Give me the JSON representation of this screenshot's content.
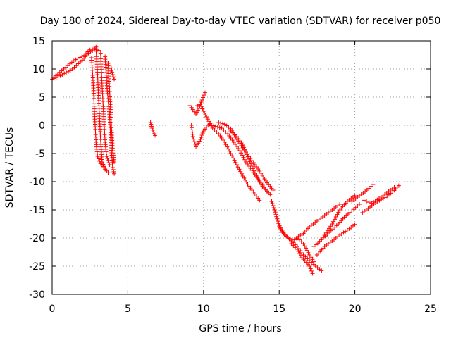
{
  "chart_data": {
    "type": "scatter",
    "title": "Day 180 of 2024, Sidereal Day-to-day VTEC variation (SDTVAR) for receiver p050",
    "xlabel": "GPS time / hours",
    "ylabel": "SDTVAR / TECUs",
    "xlim": [
      0,
      25
    ],
    "ylim": [
      -30,
      15
    ],
    "xticks": [
      0,
      5,
      10,
      15,
      20,
      25
    ],
    "yticks": [
      -30,
      -25,
      -20,
      -15,
      -10,
      -5,
      0,
      5,
      10,
      15
    ],
    "grid": true,
    "marker": "+",
    "series": [
      {
        "name": "SDTVAR",
        "color": "#ff0000",
        "tracks": [
          [
            [
              0.0,
              8.2
            ],
            [
              0.4,
              8.6
            ],
            [
              0.8,
              9.2
            ],
            [
              1.2,
              9.7
            ],
            [
              1.6,
              10.6
            ],
            [
              2.0,
              11.6
            ],
            [
              2.4,
              12.8
            ],
            [
              2.8,
              13.5
            ],
            [
              3.1,
              13.3
            ]
          ],
          [
            [
              0.1,
              8.5
            ],
            [
              0.5,
              9.4
            ],
            [
              0.9,
              10.3
            ],
            [
              1.3,
              11.2
            ],
            [
              1.7,
              11.9
            ],
            [
              2.1,
              12.4
            ],
            [
              2.5,
              13.4
            ],
            [
              2.9,
              13.9
            ]
          ],
          [
            [
              2.6,
              12.0
            ],
            [
              2.7,
              8.0
            ],
            [
              2.8,
              2.0
            ],
            [
              2.9,
              -3.0
            ],
            [
              3.0,
              -5.5
            ],
            [
              3.2,
              -6.8
            ],
            [
              3.5,
              -7.6
            ]
          ],
          [
            [
              2.9,
              13.6
            ],
            [
              3.0,
              9.0
            ],
            [
              3.1,
              3.0
            ],
            [
              3.2,
              -2.5
            ],
            [
              3.3,
              -6.5
            ],
            [
              3.5,
              -7.8
            ],
            [
              3.7,
              -8.4
            ]
          ],
          [
            [
              3.2,
              12.8
            ],
            [
              3.3,
              7.0
            ],
            [
              3.4,
              2.0
            ],
            [
              3.5,
              -3.0
            ],
            [
              3.6,
              -5.5
            ],
            [
              3.8,
              -7.0
            ]
          ],
          [
            [
              3.5,
              12.2
            ],
            [
              3.6,
              7.5
            ],
            [
              3.8,
              1.5
            ],
            [
              3.9,
              -4.0
            ],
            [
              4.0,
              -7.5
            ],
            [
              4.1,
              -8.6
            ]
          ],
          [
            [
              3.7,
              11.0
            ],
            [
              3.8,
              6.0
            ],
            [
              3.9,
              0.5
            ],
            [
              4.0,
              -4.5
            ],
            [
              4.1,
              -6.5
            ]
          ],
          [
            [
              3.9,
              10.2
            ],
            [
              4.0,
              9.0
            ],
            [
              4.1,
              8.2
            ]
          ],
          [
            [
              6.5,
              0.5
            ],
            [
              6.6,
              -0.5
            ],
            [
              6.7,
              -1.2
            ],
            [
              6.8,
              -1.8
            ]
          ],
          [
            [
              9.1,
              3.5
            ],
            [
              9.3,
              2.8
            ],
            [
              9.5,
              2.0
            ],
            [
              9.7,
              3.0
            ],
            [
              9.9,
              4.5
            ],
            [
              10.1,
              5.8
            ]
          ],
          [
            [
              9.2,
              0.0
            ],
            [
              9.3,
              -2.0
            ],
            [
              9.5,
              -3.8
            ],
            [
              9.8,
              -2.5
            ],
            [
              10.0,
              -1.0
            ],
            [
              10.3,
              0.0
            ]
          ],
          [
            [
              9.6,
              3.5
            ],
            [
              9.8,
              3.8
            ],
            [
              10.0,
              2.5
            ],
            [
              10.2,
              1.5
            ]
          ],
          [
            [
              10.2,
              1.5
            ],
            [
              10.6,
              -0.5
            ],
            [
              11.0,
              -1.5
            ],
            [
              11.4,
              -3.0
            ],
            [
              11.8,
              -5.0
            ],
            [
              12.2,
              -7.0
            ],
            [
              12.6,
              -9.0
            ],
            [
              13.0,
              -10.8
            ],
            [
              13.4,
              -12.2
            ],
            [
              13.7,
              -13.3
            ]
          ],
          [
            [
              10.4,
              0.2
            ],
            [
              10.8,
              -0.2
            ],
            [
              11.2,
              -0.5
            ],
            [
              11.6,
              -1.5
            ],
            [
              12.0,
              -3.0
            ],
            [
              12.4,
              -4.5
            ],
            [
              12.8,
              -6.5
            ],
            [
              13.2,
              -8.0
            ],
            [
              13.6,
              -9.5
            ],
            [
              14.0,
              -11.0
            ],
            [
              14.4,
              -12.3
            ]
          ],
          [
            [
              11.0,
              0.5
            ],
            [
              11.4,
              0.2
            ],
            [
              11.8,
              -0.6
            ],
            [
              12.2,
              -2.5
            ],
            [
              12.6,
              -4.0
            ],
            [
              13.0,
              -5.5
            ],
            [
              13.4,
              -7.0
            ],
            [
              13.8,
              -8.5
            ],
            [
              14.2,
              -10.2
            ],
            [
              14.6,
              -11.5
            ]
          ],
          [
            [
              11.8,
              -1.0
            ],
            [
              12.2,
              -2.0
            ],
            [
              12.6,
              -3.5
            ],
            [
              13.0,
              -6.0
            ],
            [
              13.4,
              -8.5
            ],
            [
              13.8,
              -10.5
            ],
            [
              14.2,
              -11.8
            ]
          ],
          [
            [
              14.5,
              -13.5
            ],
            [
              14.7,
              -15.0
            ],
            [
              14.9,
              -17.0
            ],
            [
              15.2,
              -19.0
            ],
            [
              15.6,
              -20.0
            ],
            [
              16.0,
              -20.3
            ],
            [
              16.4,
              -19.5
            ]
          ],
          [
            [
              15.0,
              -18.0
            ],
            [
              15.4,
              -19.5
            ],
            [
              15.8,
              -20.5
            ],
            [
              16.2,
              -21.5
            ],
            [
              16.6,
              -23.0
            ],
            [
              17.0,
              -24.0
            ],
            [
              17.4,
              -25.0
            ],
            [
              17.8,
              -25.8
            ]
          ],
          [
            [
              15.8,
              -21.0
            ],
            [
              16.2,
              -22.0
            ],
            [
              16.5,
              -23.5
            ],
            [
              16.8,
              -24.3
            ],
            [
              17.0,
              -25.0
            ],
            [
              17.2,
              -26.3
            ]
          ],
          [
            [
              16.2,
              -20.0
            ],
            [
              16.6,
              -21.0
            ],
            [
              17.0,
              -23.0
            ],
            [
              17.3,
              -24.2
            ]
          ],
          [
            [
              17.3,
              -21.5
            ],
            [
              17.8,
              -20.3
            ],
            [
              18.3,
              -19.0
            ],
            [
              18.8,
              -17.8
            ],
            [
              19.3,
              -16.3
            ],
            [
              19.8,
              -15.2
            ],
            [
              20.3,
              -14.0
            ]
          ],
          [
            [
              17.5,
              -23.0
            ],
            [
              18.0,
              -21.5
            ],
            [
              18.5,
              -20.5
            ],
            [
              19.0,
              -19.5
            ],
            [
              19.5,
              -18.6
            ],
            [
              20.0,
              -17.6
            ]
          ],
          [
            [
              18.0,
              -19.5
            ],
            [
              18.5,
              -17.5
            ],
            [
              19.0,
              -15.0
            ],
            [
              19.5,
              -13.5
            ],
            [
              20.0,
              -12.5
            ]
          ],
          [
            [
              16.5,
              -19.5
            ],
            [
              17.0,
              -18.0
            ],
            [
              17.5,
              -17.0
            ],
            [
              18.0,
              -16.0
            ],
            [
              18.5,
              -15.0
            ],
            [
              19.0,
              -14.0
            ]
          ],
          [
            [
              19.8,
              -13.5
            ],
            [
              20.3,
              -12.5
            ],
            [
              20.8,
              -11.5
            ],
            [
              21.2,
              -10.5
            ]
          ],
          [
            [
              20.5,
              -15.5
            ],
            [
              21.0,
              -14.5
            ],
            [
              21.5,
              -13.5
            ],
            [
              22.0,
              -12.8
            ],
            [
              22.5,
              -11.8
            ],
            [
              22.9,
              -10.7
            ]
          ],
          [
            [
              20.6,
              -13.3
            ],
            [
              21.1,
              -13.8
            ],
            [
              21.6,
              -13.0
            ],
            [
              22.1,
              -12.0
            ],
            [
              22.6,
              -11.0
            ]
          ]
        ]
      }
    ]
  }
}
